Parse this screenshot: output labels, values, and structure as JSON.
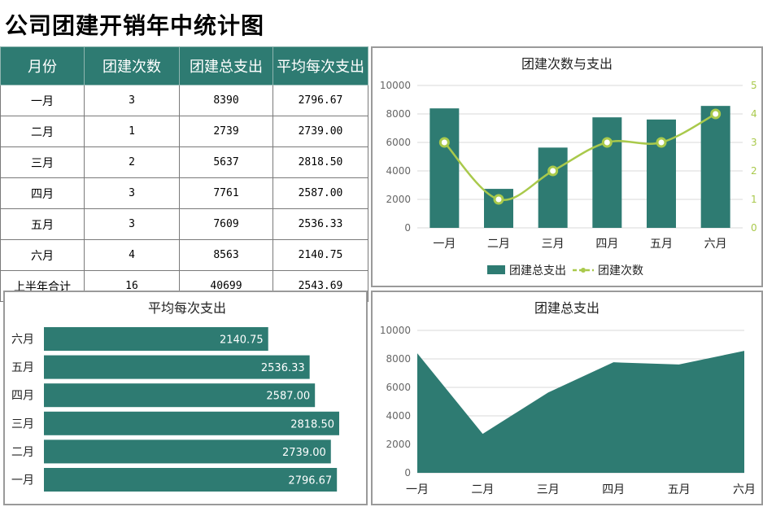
{
  "title": "公司团建开销年中统计图",
  "table": {
    "headers": [
      "月份",
      "团建次数",
      "团建总支出",
      "平均每次支出"
    ],
    "rows": [
      [
        "一月",
        "3",
        "8390",
        "2796.67"
      ],
      [
        "二月",
        "1",
        "2739",
        "2739.00"
      ],
      [
        "三月",
        "2",
        "5637",
        "2818.50"
      ],
      [
        "四月",
        "3",
        "7761",
        "2587.00"
      ],
      [
        "五月",
        "3",
        "7609",
        "2536.33"
      ],
      [
        "六月",
        "4",
        "8563",
        "2140.75"
      ],
      [
        "上半年合计",
        "16",
        "40699",
        "2543.69"
      ]
    ]
  },
  "colors": {
    "bar": "#2e7b72",
    "line": "#a9c94b",
    "grid": "#d9d9d9"
  },
  "chart_data": [
    {
      "type": "bar",
      "title": "团建次数与支出",
      "categories": [
        "一月",
        "二月",
        "三月",
        "四月",
        "五月",
        "六月"
      ],
      "series": [
        {
          "name": "团建总支出",
          "type": "bar",
          "axis": "left",
          "values": [
            8390,
            2739,
            5637,
            7761,
            7609,
            8563
          ]
        },
        {
          "name": "团建次数",
          "type": "line",
          "axis": "right",
          "values": [
            3,
            1,
            2,
            3,
            3,
            4
          ]
        }
      ],
      "y_left": {
        "min": 0,
        "max": 10000,
        "ticks": [
          "0",
          "2000",
          "4000",
          "6000",
          "8000",
          "10000"
        ]
      },
      "y_right": {
        "min": 0,
        "max": 5,
        "ticks": [
          "0",
          "1",
          "2",
          "3",
          "4",
          "5"
        ]
      },
      "legend_position": "bottom",
      "grid": true
    },
    {
      "type": "bar",
      "orientation": "horizontal",
      "title": "平均每次支出",
      "categories": [
        "六月",
        "五月",
        "四月",
        "三月",
        "二月",
        "一月"
      ],
      "values": [
        2140.75,
        2536.33,
        2587.0,
        2818.5,
        2739.0,
        2796.67
      ],
      "labels": [
        "2140.75",
        "2536.33",
        "2587.00",
        "2818.50",
        "2739.00",
        "2796.67"
      ]
    },
    {
      "type": "area",
      "title": "团建总支出",
      "categories": [
        "一月",
        "二月",
        "三月",
        "四月",
        "五月",
        "六月"
      ],
      "values": [
        8390,
        2739,
        5637,
        7761,
        7609,
        8563
      ],
      "y": {
        "min": 0,
        "max": 10000,
        "ticks": [
          "0",
          "2000",
          "4000",
          "6000",
          "8000",
          "10000"
        ]
      },
      "grid": true
    }
  ]
}
